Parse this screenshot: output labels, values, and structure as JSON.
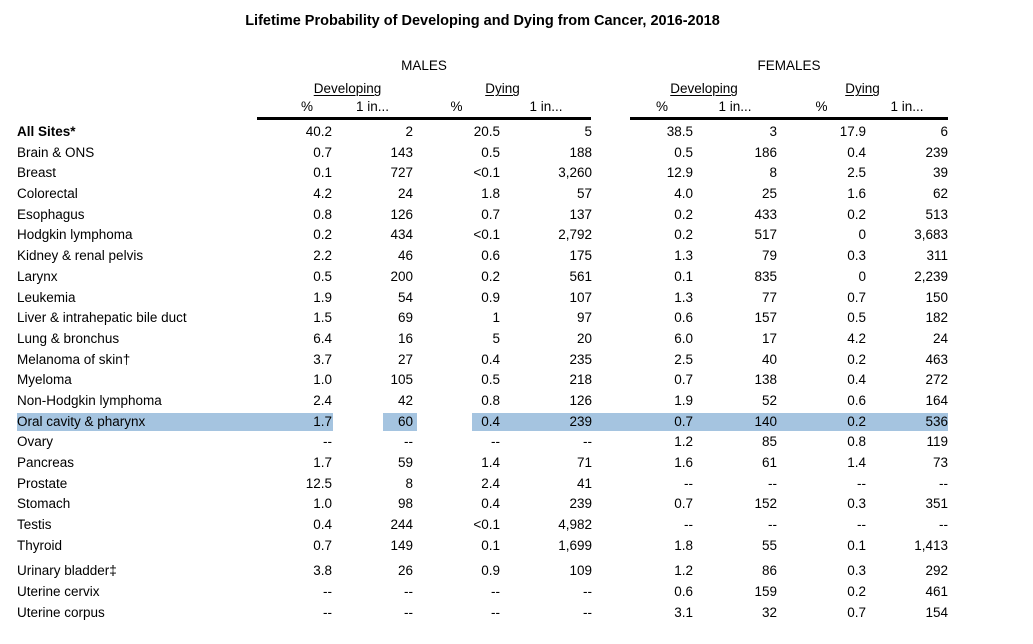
{
  "title": "Lifetime Probability of Developing and Dying from Cancer, 2016-2018",
  "highlight_color": "#a5c4e0",
  "table": {
    "groups": [
      {
        "label": "MALES"
      },
      {
        "label": "FEMALES"
      }
    ],
    "subheaders": {
      "developing": "Developing",
      "dying": "Dying"
    },
    "measure": {
      "percent": "%",
      "one_in": "1 in..."
    },
    "rows": [
      {
        "label": "All Sites*",
        "bold": true,
        "m": [
          "40.2",
          "2",
          "20.5",
          "5"
        ],
        "f": [
          "38.5",
          "3",
          "17.9",
          "6"
        ]
      },
      {
        "label": "Brain & ONS",
        "m": [
          "0.7",
          "143",
          "0.5",
          "188"
        ],
        "f": [
          "0.5",
          "186",
          "0.4",
          "239"
        ]
      },
      {
        "label": "Breast",
        "m": [
          "0.1",
          "727",
          "<0.1",
          "3,260"
        ],
        "f": [
          "12.9",
          "8",
          "2.5",
          "39"
        ]
      },
      {
        "label": "Colorectal",
        "m": [
          "4.2",
          "24",
          "1.8",
          "57"
        ],
        "f": [
          "4.0",
          "25",
          "1.6",
          "62"
        ]
      },
      {
        "label": "Esophagus",
        "m": [
          "0.8",
          "126",
          "0.7",
          "137"
        ],
        "f": [
          "0.2",
          "433",
          "0.2",
          "513"
        ]
      },
      {
        "label": "Hodgkin lymphoma",
        "m": [
          "0.2",
          "434",
          "<0.1",
          "2,792"
        ],
        "f": [
          "0.2",
          "517",
          "0",
          "3,683"
        ]
      },
      {
        "label": "Kidney & renal pelvis",
        "m": [
          "2.2",
          "46",
          "0.6",
          "175"
        ],
        "f": [
          "1.3",
          "79",
          "0.3",
          "311"
        ]
      },
      {
        "label": "Larynx",
        "m": [
          "0.5",
          "200",
          "0.2",
          "561"
        ],
        "f": [
          "0.1",
          "835",
          "0",
          "2,239"
        ]
      },
      {
        "label": "Leukemia",
        "m": [
          "1.9",
          "54",
          "0.9",
          "107"
        ],
        "f": [
          "1.3",
          "77",
          "0.7",
          "150"
        ]
      },
      {
        "label": "Liver & intrahepatic bile duct",
        "m": [
          "1.5",
          "69",
          "1",
          "97"
        ],
        "f": [
          "0.6",
          "157",
          "0.5",
          "182"
        ]
      },
      {
        "label": "Lung & bronchus",
        "m": [
          "6.4",
          "16",
          "5",
          "20"
        ],
        "f": [
          "6.0",
          "17",
          "4.2",
          "24"
        ]
      },
      {
        "label": "Melanoma of skin†",
        "m": [
          "3.7",
          "27",
          "0.4",
          "235"
        ],
        "f": [
          "2.5",
          "40",
          "0.2",
          "463"
        ]
      },
      {
        "label": "Myeloma",
        "m": [
          "1.0",
          "105",
          "0.5",
          "218"
        ],
        "f": [
          "0.7",
          "138",
          "0.4",
          "272"
        ]
      },
      {
        "label": "Non-Hodgkin lymphoma",
        "m": [
          "2.4",
          "42",
          "0.8",
          "126"
        ],
        "f": [
          "1.9",
          "52",
          "0.6",
          "164"
        ]
      },
      {
        "label": "Oral cavity & pharynx",
        "highlight": true,
        "m": [
          "1.7",
          "60",
          "0.4",
          "239"
        ],
        "f": [
          "0.7",
          "140",
          "0.2",
          "536"
        ]
      },
      {
        "label": "Ovary",
        "m": [
          "--",
          "--",
          "--",
          "--"
        ],
        "f": [
          "1.2",
          "85",
          "0.8",
          "119"
        ]
      },
      {
        "label": "Pancreas",
        "m": [
          "1.7",
          "59",
          "1.4",
          "71"
        ],
        "f": [
          "1.6",
          "61",
          "1.4",
          "73"
        ]
      },
      {
        "label": "Prostate",
        "m": [
          "12.5",
          "8",
          "2.4",
          "41"
        ],
        "f": [
          "--",
          "--",
          "--",
          "--"
        ]
      },
      {
        "label": "Stomach",
        "m": [
          "1.0",
          "98",
          "0.4",
          "239"
        ],
        "f": [
          "0.7",
          "152",
          "0.3",
          "351"
        ]
      },
      {
        "label": "Testis",
        "m": [
          "0.4",
          "244",
          "<0.1",
          "4,982"
        ],
        "f": [
          "--",
          "--",
          "--",
          "--"
        ]
      },
      {
        "label": "Thyroid",
        "m": [
          "0.7",
          "149",
          "0.1",
          "1,699"
        ],
        "f": [
          "1.8",
          "55",
          "0.1",
          "1,413"
        ]
      },
      {
        "label": "Urinary bladder‡",
        "gap_before": true,
        "m": [
          "3.8",
          "26",
          "0.9",
          "109"
        ],
        "f": [
          "1.2",
          "86",
          "0.3",
          "292"
        ]
      },
      {
        "label": "Uterine cervix",
        "m": [
          "--",
          "--",
          "--",
          "--"
        ],
        "f": [
          "0.6",
          "159",
          "0.2",
          "461"
        ]
      },
      {
        "label": "Uterine corpus",
        "m": [
          "--",
          "--",
          "--",
          "--"
        ],
        "f": [
          "3.1",
          "32",
          "0.7",
          "154"
        ]
      }
    ]
  }
}
